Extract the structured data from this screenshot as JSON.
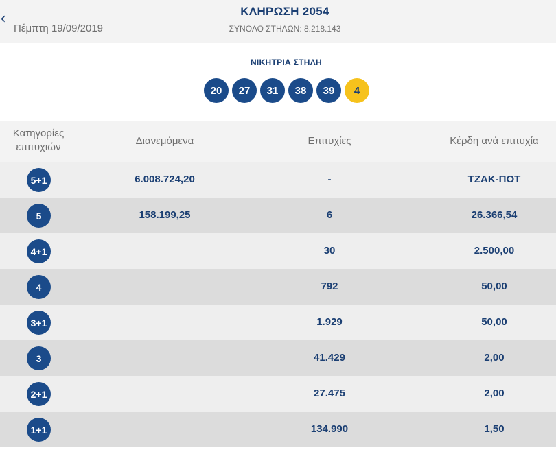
{
  "header": {
    "back_icon": "chevron-left-icon",
    "date": "Πέμπτη 19/09/2019",
    "title": "ΚΛΗΡΩΣΗ 2054",
    "total_columns": "ΣΥΝΟΛΟ ΣΤΗΛΩΝ: 8.218.143"
  },
  "winning": {
    "label": "ΝΙΚΗΤΡΙΑ ΣΤΗΛΗ",
    "numbers": [
      "20",
      "27",
      "31",
      "38",
      "39"
    ],
    "joker": "4"
  },
  "table": {
    "headers": {
      "categories_line1": "Κατηγορίες",
      "categories_line2": "επιτυχιών",
      "distributed": "Διανεμόμενα",
      "winners": "Επιτυχίες",
      "prize_per_winner": "Κέρδη ανά επιτυχία"
    },
    "rows": [
      {
        "category": "5+1",
        "distributed": "6.008.724,20",
        "winners": "-",
        "prize": "ΤΖΑΚ-ΠΟΤ"
      },
      {
        "category": "5",
        "distributed": "158.199,25",
        "winners": "6",
        "prize": "26.366,54"
      },
      {
        "category": "4+1",
        "distributed": "",
        "winners": "30",
        "prize": "2.500,00"
      },
      {
        "category": "4",
        "distributed": "",
        "winners": "792",
        "prize": "50,00"
      },
      {
        "category": "3+1",
        "distributed": "",
        "winners": "1.929",
        "prize": "50,00"
      },
      {
        "category": "3",
        "distributed": "",
        "winners": "41.429",
        "prize": "2,00"
      },
      {
        "category": "2+1",
        "distributed": "",
        "winners": "27.475",
        "prize": "2,00"
      },
      {
        "category": "1+1",
        "distributed": "",
        "winners": "134.990",
        "prize": "1,50"
      }
    ]
  },
  "colors": {
    "navy": "#1b4b8a",
    "joker_yellow": "#f6c21c",
    "row_light": "#eeeeee",
    "row_dark": "#dcdcdc"
  }
}
